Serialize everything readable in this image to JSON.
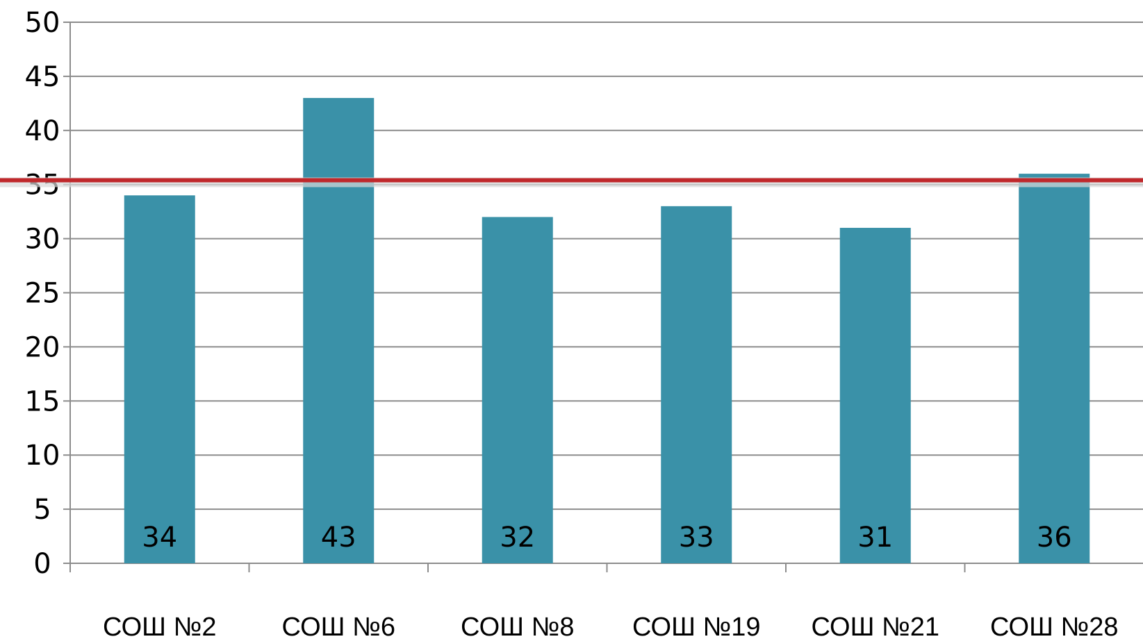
{
  "chart_data": {
    "type": "bar",
    "categories": [
      "СОШ №2",
      "СОШ №6",
      "СОШ №8",
      "СОШ №19",
      "СОШ №21",
      "СОШ №28"
    ],
    "values": [
      34,
      43,
      32,
      33,
      31,
      36
    ],
    "data_labels": [
      "34",
      "43",
      "32",
      "33",
      "31",
      "36"
    ],
    "ylim": [
      0,
      50
    ],
    "yticks": [
      0,
      5,
      10,
      15,
      20,
      25,
      30,
      35,
      40,
      45,
      50
    ],
    "grid": true,
    "reference_line": {
      "value": 35.4,
      "color": "#c0282b"
    },
    "bar_color": "#3a91a8",
    "grid_color": "#8c8c8c",
    "title": "",
    "xlabel": "",
    "ylabel": ""
  }
}
